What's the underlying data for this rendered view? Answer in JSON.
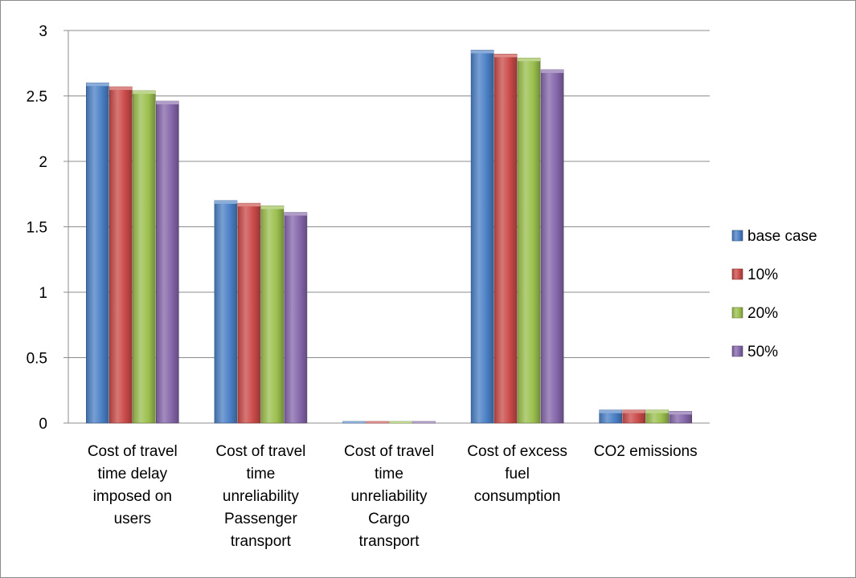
{
  "chart_data": {
    "type": "bar",
    "categories": [
      [
        "Cost of travel",
        "time delay",
        "imposed on",
        "users"
      ],
      [
        "Cost of travel",
        "time",
        "unreliability",
        "Passenger",
        "transport"
      ],
      [
        "Cost of travel",
        "time",
        "unreliability",
        "Cargo",
        "transport"
      ],
      [
        "Cost of excess",
        "fuel",
        "consumption"
      ],
      [
        "CO2 emissions"
      ]
    ],
    "series": [
      {
        "name": "base case",
        "color": "#4a7fc5",
        "values": [
          2.6,
          1.7,
          0.01,
          2.85,
          0.1
        ]
      },
      {
        "name": "10%",
        "color": "#c94a48",
        "values": [
          2.57,
          1.68,
          0.01,
          2.82,
          0.1
        ]
      },
      {
        "name": "20%",
        "color": "#9bbf4e",
        "values": [
          2.54,
          1.66,
          0.01,
          2.79,
          0.1
        ]
      },
      {
        "name": "50%",
        "color": "#8466a9",
        "values": [
          2.46,
          1.61,
          0.01,
          2.7,
          0.09
        ]
      }
    ],
    "ylim": [
      0,
      3
    ],
    "yticks": [
      "0",
      "0.5",
      "1",
      "1.5",
      "2",
      "2.5",
      "3"
    ],
    "grid": true,
    "legend_position": "right"
  }
}
